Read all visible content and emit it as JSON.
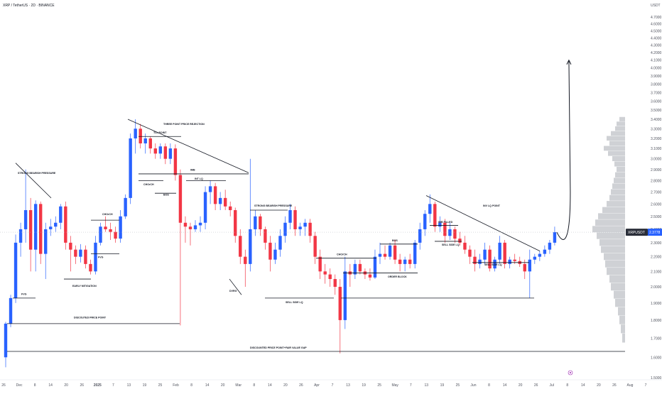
{
  "header": {
    "symbol_line": "XRP / TetherUS · 2D · BINANCE"
  },
  "axis": {
    "unit_label": "USDT",
    "y_ticks": [
      "4.7000",
      "4.6000",
      "4.5000",
      "4.4000",
      "4.3000",
      "4.2000",
      "4.1000",
      "4.0000",
      "3.9000",
      "3.8000",
      "3.7000",
      "3.6000",
      "3.5000",
      "3.4000",
      "3.3000",
      "3.2000",
      "3.1000",
      "3.0000",
      "2.9000",
      "2.8000",
      "2.7000",
      "2.6000",
      "2.5000",
      "2.4000",
      "2.3000",
      "2.2000",
      "2.1000",
      "2.0000",
      "1.9000",
      "1.8000",
      "1.7000",
      "1.6000",
      "1.5000"
    ],
    "x_ticks": [
      "26",
      "Dec",
      "8",
      "14",
      "20",
      "26",
      "2025",
      "7",
      "13",
      "19",
      "25",
      "Feb",
      "8",
      "14",
      "20",
      "Mar",
      "8",
      "14",
      "20",
      "26",
      "Apr",
      "7",
      "13",
      "19",
      "25",
      "May",
      "7",
      "13",
      "19",
      "25",
      "Jun",
      "8",
      "14",
      "20",
      "26",
      "Jul",
      "8",
      "14",
      "20",
      "26",
      "Aug",
      "7"
    ],
    "price_badge_symbol": "XRPUSDT",
    "price_badge_value": "2.3778"
  },
  "colors": {
    "bull": "#2962ff",
    "bear": "#f23645",
    "badge": "#2962ff",
    "grid": "#f0f3fa",
    "text": "#131722",
    "axis_text": "#50535e",
    "volume_profile": "#9598a1"
  },
  "annotations": [
    {
      "text": "STRONG BEARISH PRESSURE"
    },
    {
      "text": "FVG"
    },
    {
      "text": "EARLY MITIGATION"
    },
    {
      "text": "FVG"
    },
    {
      "text": "CHOrCH"
    },
    {
      "text": "DISCOUTED PRICE POINT"
    },
    {
      "text": "TLL POINT"
    },
    {
      "text": "THREE POINT PRICE REJECTION"
    },
    {
      "text": "IMB"
    },
    {
      "text": "CHOrCH"
    },
    {
      "text": "BOS"
    },
    {
      "text": "INT LQ"
    },
    {
      "text": "DVRG"
    },
    {
      "text": "STRONG BEARISH PRESSURE"
    },
    {
      "text": "SELL SIDE LQ"
    },
    {
      "text": "DISCOUNTED PRICE POINT+FAIR VALUE GAP"
    },
    {
      "text": "CHOrCH"
    },
    {
      "text": "BOS"
    },
    {
      "text": "ORDER BLOCK"
    },
    {
      "text": "IMB FILLED"
    },
    {
      "text": "SELL SIDE LQ"
    },
    {
      "text": "INV LQ POINT"
    },
    {
      "text": "SELL SIDE LQ"
    }
  ],
  "chart_data": {
    "type": "candlestick",
    "title": "XRP / TetherUS · 2D · BINANCE",
    "ylabel": "USDT",
    "ylim": [
      1.5,
      4.7
    ],
    "y_scale": "log",
    "grid": false,
    "current_price": 2.3778,
    "candles": [
      {
        "date": "2024-11-24",
        "o": 1.6,
        "h": 1.79,
        "l": 1.55,
        "c": 1.78
      },
      {
        "date": "2024-11-26",
        "o": 1.78,
        "h": 1.95,
        "l": 1.76,
        "c": 1.93
      },
      {
        "date": "2024-11-28",
        "o": 1.93,
        "h": 2.36,
        "l": 1.9,
        "c": 2.3
      },
      {
        "date": "2024-11-30",
        "o": 2.3,
        "h": 2.45,
        "l": 2.2,
        "c": 2.4
      },
      {
        "date": "2024-12-02",
        "o": 2.4,
        "h": 2.9,
        "l": 2.3,
        "c": 2.55
      },
      {
        "date": "2024-12-04",
        "o": 2.55,
        "h": 2.65,
        "l": 2.1,
        "c": 2.25
      },
      {
        "date": "2024-12-06",
        "o": 2.25,
        "h": 2.63,
        "l": 2.1,
        "c": 2.6
      },
      {
        "date": "2024-12-08",
        "o": 2.6,
        "h": 2.62,
        "l": 2.15,
        "c": 2.22
      },
      {
        "date": "2024-12-10",
        "o": 2.22,
        "h": 2.45,
        "l": 2.05,
        "c": 2.4
      },
      {
        "date": "2024-12-12",
        "o": 2.4,
        "h": 2.48,
        "l": 2.35,
        "c": 2.42
      },
      {
        "date": "2024-12-14",
        "o": 2.42,
        "h": 2.5,
        "l": 2.38,
        "c": 2.45
      },
      {
        "date": "2024-12-16",
        "o": 2.45,
        "h": 2.6,
        "l": 2.4,
        "c": 2.58
      },
      {
        "date": "2024-12-18",
        "o": 2.58,
        "h": 2.62,
        "l": 2.25,
        "c": 2.3
      },
      {
        "date": "2024-12-20",
        "o": 2.3,
        "h": 2.35,
        "l": 2.1,
        "c": 2.25
      },
      {
        "date": "2024-12-22",
        "o": 2.25,
        "h": 2.28,
        "l": 2.15,
        "c": 2.2
      },
      {
        "date": "2024-12-24",
        "o": 2.2,
        "h": 2.29,
        "l": 2.16,
        "c": 2.25
      },
      {
        "date": "2024-12-26",
        "o": 2.25,
        "h": 2.28,
        "l": 2.12,
        "c": 2.15
      },
      {
        "date": "2024-12-28",
        "o": 2.15,
        "h": 2.18,
        "l": 2.08,
        "c": 2.1
      },
      {
        "date": "2024-12-30",
        "o": 2.1,
        "h": 2.35,
        "l": 2.08,
        "c": 2.3
      },
      {
        "date": "2025-01-01",
        "o": 2.3,
        "h": 2.45,
        "l": 2.28,
        "c": 2.42
      },
      {
        "date": "2025-01-03",
        "o": 2.42,
        "h": 2.5,
        "l": 2.38,
        "c": 2.4
      },
      {
        "date": "2025-01-05",
        "o": 2.4,
        "h": 2.45,
        "l": 2.32,
        "c": 2.38
      },
      {
        "date": "2025-01-07",
        "o": 2.38,
        "h": 2.42,
        "l": 2.3,
        "c": 2.33
      },
      {
        "date": "2025-01-09",
        "o": 2.33,
        "h": 2.55,
        "l": 2.3,
        "c": 2.5
      },
      {
        "date": "2025-01-11",
        "o": 2.5,
        "h": 2.68,
        "l": 2.48,
        "c": 2.65
      },
      {
        "date": "2025-01-13",
        "o": 2.65,
        "h": 3.25,
        "l": 2.6,
        "c": 3.2
      },
      {
        "date": "2025-01-15",
        "o": 3.2,
        "h": 3.4,
        "l": 3.05,
        "c": 3.3
      },
      {
        "date": "2025-01-17",
        "o": 3.3,
        "h": 3.35,
        "l": 3.1,
        "c": 3.15
      },
      {
        "date": "2025-01-19",
        "o": 3.15,
        "h": 3.25,
        "l": 3.05,
        "c": 3.2
      },
      {
        "date": "2025-01-21",
        "o": 3.2,
        "h": 3.22,
        "l": 3.05,
        "c": 3.1
      },
      {
        "date": "2025-01-23",
        "o": 3.1,
        "h": 3.15,
        "l": 3.0,
        "c": 3.05
      },
      {
        "date": "2025-01-25",
        "o": 3.05,
        "h": 3.15,
        "l": 3.0,
        "c": 3.12
      },
      {
        "date": "2025-01-27",
        "o": 3.12,
        "h": 3.15,
        "l": 2.95,
        "c": 3.0
      },
      {
        "date": "2025-01-29",
        "o": 3.0,
        "h": 3.15,
        "l": 2.95,
        "c": 3.1
      },
      {
        "date": "2025-01-31",
        "o": 3.1,
        "h": 3.14,
        "l": 2.8,
        "c": 2.85
      },
      {
        "date": "2025-02-02",
        "o": 2.85,
        "h": 2.9,
        "l": 1.77,
        "c": 2.45
      },
      {
        "date": "2025-02-04",
        "o": 2.45,
        "h": 2.5,
        "l": 2.3,
        "c": 2.42
      },
      {
        "date": "2025-02-06",
        "o": 2.42,
        "h": 2.45,
        "l": 2.28,
        "c": 2.4
      },
      {
        "date": "2025-02-08",
        "o": 2.4,
        "h": 2.47,
        "l": 2.38,
        "c": 2.43
      },
      {
        "date": "2025-02-10",
        "o": 2.43,
        "h": 2.5,
        "l": 2.38,
        "c": 2.45
      },
      {
        "date": "2025-02-12",
        "o": 2.45,
        "h": 2.75,
        "l": 2.4,
        "c": 2.7
      },
      {
        "date": "2025-02-14",
        "o": 2.7,
        "h": 2.8,
        "l": 2.6,
        "c": 2.75
      },
      {
        "date": "2025-02-16",
        "o": 2.75,
        "h": 2.78,
        "l": 2.55,
        "c": 2.6
      },
      {
        "date": "2025-02-18",
        "o": 2.6,
        "h": 2.7,
        "l": 2.55,
        "c": 2.65
      },
      {
        "date": "2025-02-20",
        "o": 2.65,
        "h": 2.72,
        "l": 2.55,
        "c": 2.58
      },
      {
        "date": "2025-02-22",
        "o": 2.58,
        "h": 2.62,
        "l": 2.5,
        "c": 2.55
      },
      {
        "date": "2025-02-24",
        "o": 2.55,
        "h": 2.57,
        "l": 2.3,
        "c": 2.35
      },
      {
        "date": "2025-02-26",
        "o": 2.35,
        "h": 2.4,
        "l": 2.15,
        "c": 2.2
      },
      {
        "date": "2025-02-28",
        "o": 2.2,
        "h": 2.25,
        "l": 2.0,
        "c": 2.15
      },
      {
        "date": "2025-03-02",
        "o": 2.15,
        "h": 3.0,
        "l": 2.1,
        "c": 2.4
      },
      {
        "date": "2025-03-04",
        "o": 2.4,
        "h": 2.55,
        "l": 2.35,
        "c": 2.5
      },
      {
        "date": "2025-03-06",
        "o": 2.5,
        "h": 2.52,
        "l": 2.35,
        "c": 2.4
      },
      {
        "date": "2025-03-08",
        "o": 2.4,
        "h": 2.42,
        "l": 2.25,
        "c": 2.3
      },
      {
        "date": "2025-03-10",
        "o": 2.3,
        "h": 2.35,
        "l": 2.1,
        "c": 2.18
      },
      {
        "date": "2025-03-12",
        "o": 2.18,
        "h": 2.3,
        "l": 2.15,
        "c": 2.25
      },
      {
        "date": "2025-03-14",
        "o": 2.25,
        "h": 2.4,
        "l": 2.2,
        "c": 2.35
      },
      {
        "date": "2025-03-16",
        "o": 2.35,
        "h": 2.5,
        "l": 2.3,
        "c": 2.45
      },
      {
        "date": "2025-03-18",
        "o": 2.45,
        "h": 2.6,
        "l": 2.4,
        "c": 2.55
      },
      {
        "date": "2025-03-20",
        "o": 2.55,
        "h": 2.58,
        "l": 2.35,
        "c": 2.4
      },
      {
        "date": "2025-03-22",
        "o": 2.4,
        "h": 2.45,
        "l": 2.35,
        "c": 2.42
      },
      {
        "date": "2025-03-24",
        "o": 2.42,
        "h": 2.48,
        "l": 2.35,
        "c": 2.45
      },
      {
        "date": "2025-03-26",
        "o": 2.45,
        "h": 2.48,
        "l": 2.3,
        "c": 2.35
      },
      {
        "date": "2025-03-28",
        "o": 2.35,
        "h": 2.38,
        "l": 2.15,
        "c": 2.2
      },
      {
        "date": "2025-03-30",
        "o": 2.2,
        "h": 2.25,
        "l": 2.05,
        "c": 2.1
      },
      {
        "date": "2025-04-01",
        "o": 2.1,
        "h": 2.15,
        "l": 2.02,
        "c": 2.08
      },
      {
        "date": "2025-04-03",
        "o": 2.08,
        "h": 2.12,
        "l": 2.0,
        "c": 2.05
      },
      {
        "date": "2025-04-05",
        "o": 2.05,
        "h": 2.08,
        "l": 1.95,
        "c": 2.0
      },
      {
        "date": "2025-04-07",
        "o": 2.0,
        "h": 2.05,
        "l": 1.62,
        "c": 1.8
      },
      {
        "date": "2025-04-09",
        "o": 1.8,
        "h": 2.2,
        "l": 1.75,
        "c": 2.1
      },
      {
        "date": "2025-04-11",
        "o": 2.1,
        "h": 2.15,
        "l": 2.0,
        "c": 2.08
      },
      {
        "date": "2025-04-13",
        "o": 2.08,
        "h": 2.18,
        "l": 2.05,
        "c": 2.15
      },
      {
        "date": "2025-04-15",
        "o": 2.15,
        "h": 2.18,
        "l": 2.08,
        "c": 2.1
      },
      {
        "date": "2025-04-17",
        "o": 2.1,
        "h": 2.12,
        "l": 2.05,
        "c": 2.08
      },
      {
        "date": "2025-04-19",
        "o": 2.08,
        "h": 2.12,
        "l": 2.04,
        "c": 2.06
      },
      {
        "date": "2025-04-21",
        "o": 2.06,
        "h": 2.25,
        "l": 2.05,
        "c": 2.2
      },
      {
        "date": "2025-04-23",
        "o": 2.2,
        "h": 2.3,
        "l": 2.15,
        "c": 2.22
      },
      {
        "date": "2025-04-25",
        "o": 2.22,
        "h": 2.28,
        "l": 2.18,
        "c": 2.2
      },
      {
        "date": "2025-04-27",
        "o": 2.2,
        "h": 2.3,
        "l": 2.18,
        "c": 2.28
      },
      {
        "date": "2025-04-29",
        "o": 2.28,
        "h": 2.32,
        "l": 2.15,
        "c": 2.18
      },
      {
        "date": "2025-05-01",
        "o": 2.18,
        "h": 2.22,
        "l": 2.1,
        "c": 2.15
      },
      {
        "date": "2025-05-03",
        "o": 2.15,
        "h": 2.2,
        "l": 2.1,
        "c": 2.18
      },
      {
        "date": "2025-05-05",
        "o": 2.18,
        "h": 2.22,
        "l": 2.12,
        "c": 2.15
      },
      {
        "date": "2025-05-07",
        "o": 2.15,
        "h": 2.32,
        "l": 2.12,
        "c": 2.3
      },
      {
        "date": "2025-05-09",
        "o": 2.3,
        "h": 2.45,
        "l": 2.25,
        "c": 2.4
      },
      {
        "date": "2025-05-11",
        "o": 2.4,
        "h": 2.55,
        "l": 2.35,
        "c": 2.52
      },
      {
        "date": "2025-05-13",
        "o": 2.52,
        "h": 2.68,
        "l": 2.45,
        "c": 2.6
      },
      {
        "date": "2025-05-15",
        "o": 2.6,
        "h": 2.62,
        "l": 2.38,
        "c": 2.42
      },
      {
        "date": "2025-05-17",
        "o": 2.42,
        "h": 2.5,
        "l": 2.38,
        "c": 2.45
      },
      {
        "date": "2025-05-19",
        "o": 2.45,
        "h": 2.48,
        "l": 2.3,
        "c": 2.35
      },
      {
        "date": "2025-05-21",
        "o": 2.35,
        "h": 2.45,
        "l": 2.32,
        "c": 2.4
      },
      {
        "date": "2025-05-23",
        "o": 2.4,
        "h": 2.42,
        "l": 2.3,
        "c": 2.33
      },
      {
        "date": "2025-05-25",
        "o": 2.33,
        "h": 2.38,
        "l": 2.28,
        "c": 2.3
      },
      {
        "date": "2025-05-27",
        "o": 2.3,
        "h": 2.35,
        "l": 2.22,
        "c": 2.25
      },
      {
        "date": "2025-05-29",
        "o": 2.25,
        "h": 2.28,
        "l": 2.15,
        "c": 2.2
      },
      {
        "date": "2025-05-31",
        "o": 2.2,
        "h": 2.25,
        "l": 2.1,
        "c": 2.15
      },
      {
        "date": "2025-06-02",
        "o": 2.15,
        "h": 2.22,
        "l": 2.12,
        "c": 2.18
      },
      {
        "date": "2025-06-04",
        "o": 2.18,
        "h": 2.3,
        "l": 2.15,
        "c": 2.25
      },
      {
        "date": "2025-06-06",
        "o": 2.25,
        "h": 2.28,
        "l": 2.1,
        "c": 2.12
      },
      {
        "date": "2025-06-08",
        "o": 2.12,
        "h": 2.2,
        "l": 2.1,
        "c": 2.18
      },
      {
        "date": "2025-06-10",
        "o": 2.18,
        "h": 2.35,
        "l": 2.15,
        "c": 2.3
      },
      {
        "date": "2025-06-12",
        "o": 2.3,
        "h": 2.32,
        "l": 2.12,
        "c": 2.15
      },
      {
        "date": "2025-06-14",
        "o": 2.15,
        "h": 2.2,
        "l": 2.12,
        "c": 2.18
      },
      {
        "date": "2025-06-16",
        "o": 2.18,
        "h": 2.22,
        "l": 2.15,
        "c": 2.17
      },
      {
        "date": "2025-06-18",
        "o": 2.17,
        "h": 2.2,
        "l": 2.13,
        "c": 2.15
      },
      {
        "date": "2025-06-20",
        "o": 2.15,
        "h": 2.18,
        "l": 2.05,
        "c": 2.1
      },
      {
        "date": "2025-06-22",
        "o": 2.1,
        "h": 2.25,
        "l": 1.93,
        "c": 2.18
      },
      {
        "date": "2025-06-24",
        "o": 2.18,
        "h": 2.22,
        "l": 2.15,
        "c": 2.2
      },
      {
        "date": "2025-06-26",
        "o": 2.2,
        "h": 2.24,
        "l": 2.17,
        "c": 2.22
      },
      {
        "date": "2025-06-28",
        "o": 2.22,
        "h": 2.28,
        "l": 2.2,
        "c": 2.25
      },
      {
        "date": "2025-06-30",
        "o": 2.25,
        "h": 2.32,
        "l": 2.22,
        "c": 2.3
      },
      {
        "date": "2025-07-02",
        "o": 2.3,
        "h": 2.42,
        "l": 2.28,
        "c": 2.3778
      }
    ],
    "projection": {
      "from_price": 2.3778,
      "dip_price": 2.28,
      "target_price": 4.1
    }
  }
}
